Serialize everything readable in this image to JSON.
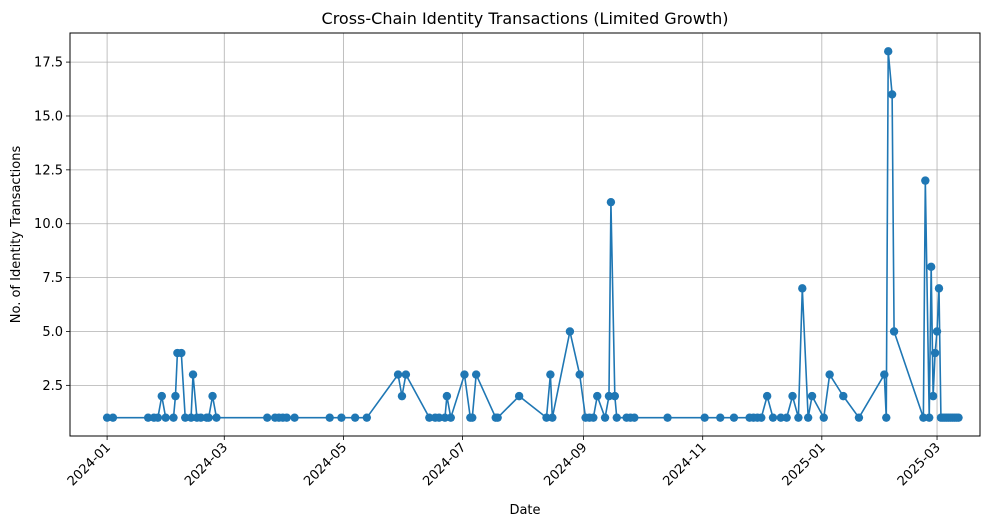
{
  "chart_data": {
    "type": "line",
    "title": "Cross-Chain Identity Transactions (Limited Growth)",
    "xlabel": "Date",
    "ylabel": "No. of Identity Transactions",
    "xlim": [
      "2023-12-13",
      "2025-03-23"
    ],
    "ylim": [
      0.15,
      18.85
    ],
    "grid": true,
    "line_color": "#1f77b4",
    "x_ticks": [
      {
        "date": "2024-01-01",
        "label": "2024-01"
      },
      {
        "date": "2024-03-01",
        "label": "2024-03"
      },
      {
        "date": "2024-05-01",
        "label": "2024-05"
      },
      {
        "date": "2024-07-01",
        "label": "2024-07"
      },
      {
        "date": "2024-09-01",
        "label": "2024-09"
      },
      {
        "date": "2024-11-01",
        "label": "2024-11"
      },
      {
        "date": "2025-01-01",
        "label": "2025-01"
      },
      {
        "date": "2025-03-01",
        "label": "2025-03"
      }
    ],
    "y_ticks": [
      {
        "value": 2.5,
        "label": "2.5"
      },
      {
        "value": 5.0,
        "label": "5.0"
      },
      {
        "value": 7.5,
        "label": "7.5"
      },
      {
        "value": 10.0,
        "label": "10.0"
      },
      {
        "value": 12.5,
        "label": "12.5"
      },
      {
        "value": 15.0,
        "label": "15.0"
      },
      {
        "value": 17.5,
        "label": "17.5"
      }
    ],
    "series": [
      {
        "x": [
          "2024-01-01",
          "2024-01-04",
          "2024-01-22",
          "2024-01-25",
          "2024-01-27",
          "2024-01-29",
          "2024-01-31",
          "2024-02-04",
          "2024-02-05",
          "2024-02-06",
          "2024-02-08",
          "2024-02-10",
          "2024-02-13",
          "2024-02-14",
          "2024-02-16",
          "2024-02-18",
          "2024-02-21",
          "2024-02-22",
          "2024-02-24",
          "2024-02-26",
          "2024-03-23",
          "2024-03-27",
          "2024-03-29",
          "2024-03-31",
          "2024-04-02",
          "2024-04-06",
          "2024-04-24",
          "2024-04-30",
          "2024-05-07",
          "2024-05-13",
          "2024-05-29",
          "2024-05-31",
          "2024-06-02",
          "2024-06-14",
          "2024-06-17",
          "2024-06-19",
          "2024-06-22",
          "2024-06-23",
          "2024-06-25",
          "2024-07-02",
          "2024-07-05",
          "2024-07-06",
          "2024-07-08",
          "2024-07-18",
          "2024-07-19",
          "2024-07-30",
          "2024-08-13",
          "2024-08-15",
          "2024-08-16",
          "2024-08-25",
          "2024-08-30",
          "2024-09-02",
          "2024-09-04",
          "2024-09-06",
          "2024-09-08",
          "2024-09-12",
          "2024-09-14",
          "2024-09-15",
          "2024-09-17",
          "2024-09-18",
          "2024-09-23",
          "2024-09-25",
          "2024-09-27",
          "2024-10-14",
          "2024-11-02",
          "2024-11-10",
          "2024-11-17",
          "2024-11-25",
          "2024-11-27",
          "2024-11-29",
          "2024-12-01",
          "2024-12-04",
          "2024-12-07",
          "2024-12-11",
          "2024-12-14",
          "2024-12-17",
          "2024-12-20",
          "2024-12-22",
          "2024-12-25",
          "2024-12-27",
          "2025-01-02",
          "2025-01-05",
          "2025-01-12",
          "2025-01-20",
          "2025-02-02",
          "2025-02-03",
          "2025-02-04",
          "2025-02-06",
          "2025-02-07",
          "2025-02-22",
          "2025-02-23",
          "2025-02-25",
          "2025-02-26",
          "2025-02-27",
          "2025-02-28",
          "2025-03-01",
          "2025-03-02",
          "2025-03-03",
          "2025-03-04",
          "2025-03-05",
          "2025-03-06",
          "2025-03-07",
          "2025-03-08",
          "2025-03-09",
          "2025-03-10",
          "2025-03-11",
          "2025-03-12"
        ],
        "y": [
          1,
          1,
          1,
          1,
          1,
          2,
          1,
          1,
          2,
          4,
          4,
          1,
          1,
          3,
          1,
          1,
          1,
          1,
          2,
          1,
          1,
          1,
          1,
          1,
          1,
          1,
          1,
          1,
          1,
          1,
          3,
          2,
          3,
          1,
          1,
          1,
          1,
          2,
          1,
          3,
          1,
          1,
          3,
          1,
          1,
          2,
          1,
          3,
          1,
          5,
          3,
          1,
          1,
          1,
          2,
          1,
          2,
          11,
          2,
          1,
          1,
          1,
          1,
          1,
          1,
          1,
          1,
          1,
          1,
          1,
          1,
          2,
          1,
          1,
          1,
          2,
          1,
          7,
          1,
          2,
          1,
          3,
          2,
          1,
          3,
          1,
          18,
          16,
          5,
          1,
          12,
          1,
          8,
          2,
          4,
          5,
          7,
          1,
          1,
          1,
          1,
          1,
          1,
          1,
          1,
          1,
          1
        ]
      }
    ]
  }
}
